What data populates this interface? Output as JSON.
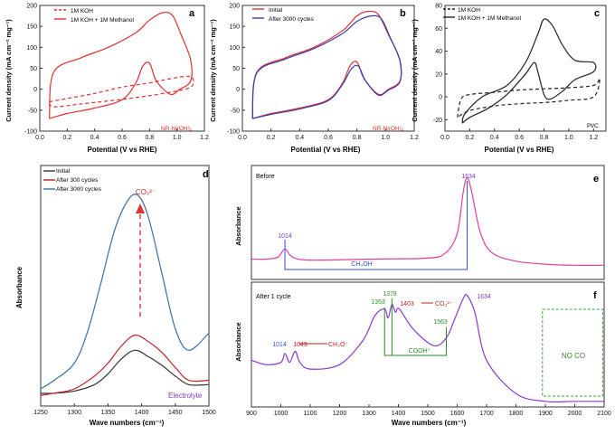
{
  "chart_data": [
    {
      "panel": "a",
      "type": "line",
      "xlabel": "Potential (V vs RHE)",
      "ylabel": "Current density (mA cm⁻² mg⁻¹)",
      "xlim": [
        0,
        1.2
      ],
      "ylim": [
        -100,
        200
      ],
      "xticks": [
        "0.0",
        "0.2",
        "0.4",
        "0.6",
        "0.8",
        "1.0",
        "1.2"
      ],
      "yticks": [
        "-100",
        "-50",
        "0",
        "50",
        "100",
        "150",
        "200"
      ],
      "legend": [
        "1M KOH",
        "1M KOH + 1M Methanol"
      ],
      "annotation": "NR-Ni(OH)₂",
      "series": [
        {
          "name": "1M KOH",
          "style": "dashed",
          "color": "#e03030",
          "x": [
            0.07,
            0.2,
            0.4,
            0.6,
            0.8,
            0.95,
            1.1,
            1.1,
            0.9,
            0.7,
            0.5,
            0.3,
            0.1,
            0.07
          ],
          "y": [
            -30,
            -22,
            -10,
            5,
            15,
            25,
            30,
            5,
            -10,
            -20,
            -28,
            -35,
            -42,
            -30
          ]
        },
        {
          "name": "1M KOH + 1M Methanol",
          "style": "solid",
          "color": "#e03030",
          "x": [
            0.07,
            0.1,
            0.3,
            0.5,
            0.7,
            0.8,
            0.9,
            0.97,
            1.03,
            1.1,
            1.1,
            1.02,
            0.95,
            0.85,
            0.8,
            0.75,
            0.7,
            0.6,
            0.4,
            0.2,
            0.07
          ],
          "y": [
            -70,
            40,
            75,
            100,
            135,
            165,
            183,
            175,
            130,
            70,
            20,
            0,
            -12,
            20,
            62,
            55,
            15,
            -25,
            -45,
            -58,
            -70
          ]
        }
      ]
    },
    {
      "panel": "b",
      "type": "line",
      "xlabel": "Potential (V vs RHE)",
      "ylabel": "Current density (mA cm⁻² mg⁻¹)",
      "xlim": [
        0,
        1.2
      ],
      "ylim": [
        -100,
        200
      ],
      "xticks": [
        "0.0",
        "0.2",
        "0.4",
        "0.6",
        "0.8",
        "1.0",
        "1.2"
      ],
      "yticks": [
        "-100",
        "-50",
        "0",
        "50",
        "100",
        "150",
        "200"
      ],
      "legend": [
        "Initial",
        "After 3000 cycles"
      ],
      "annotation": "NR-Ni(OH)₂",
      "series": [
        {
          "name": "Initial",
          "style": "solid",
          "color": "#e03030",
          "x": [
            0.07,
            0.1,
            0.3,
            0.5,
            0.7,
            0.8,
            0.88,
            0.95,
            1.02,
            1.1,
            1.1,
            1.02,
            0.95,
            0.85,
            0.8,
            0.75,
            0.7,
            0.6,
            0.4,
            0.2,
            0.07
          ],
          "y": [
            -70,
            40,
            75,
            100,
            140,
            175,
            186,
            178,
            130,
            70,
            20,
            0,
            -12,
            25,
            65,
            55,
            15,
            -25,
            -45,
            -58,
            -70
          ]
        },
        {
          "name": "After 3000 cycles",
          "style": "solid",
          "color": "#3a3ab0",
          "x": [
            0.07,
            0.1,
            0.3,
            0.5,
            0.7,
            0.8,
            0.9,
            0.97,
            1.03,
            1.1,
            1.1,
            1.02,
            0.95,
            0.86,
            0.81,
            0.76,
            0.7,
            0.6,
            0.4,
            0.2,
            0.07
          ],
          "y": [
            -70,
            38,
            72,
            97,
            133,
            162,
            175,
            168,
            125,
            68,
            18,
            -2,
            -14,
            20,
            55,
            48,
            12,
            -27,
            -47,
            -60,
            -70
          ]
        }
      ]
    },
    {
      "panel": "c",
      "type": "line",
      "xlabel": "Potential (V vs RHE)",
      "ylabel": "Current density (mA cm⁻² mg⁻¹)",
      "xlim": [
        0,
        1.3
      ],
      "ylim": [
        -30,
        80
      ],
      "xticks": [
        "0.0",
        "0.2",
        "0.4",
        "0.6",
        "0.8",
        "1.0",
        "1.2"
      ],
      "yticks": [
        "-20",
        "0",
        "20",
        "40",
        "60",
        "80"
      ],
      "legend": [
        "1M KOH",
        "1M KOH + 1M Methanol"
      ],
      "annotation": "Pt/C",
      "series": [
        {
          "name": "1M KOH",
          "style": "dashed",
          "color": "#222222",
          "x": [
            0.1,
            0.13,
            0.2,
            0.4,
            0.6,
            0.8,
            1.0,
            1.2,
            1.25,
            1.2,
            1.0,
            0.8,
            0.6,
            0.4,
            0.2,
            0.1
          ],
          "y": [
            -18,
            -2,
            2,
            4,
            6,
            7,
            8,
            10,
            16,
            0,
            -3,
            -5,
            -6,
            -8,
            -12,
            -18
          ]
        },
        {
          "name": "1M KOH + 1M Methanol",
          "style": "solid",
          "color": "#222222",
          "x": [
            0.14,
            0.16,
            0.3,
            0.5,
            0.65,
            0.75,
            0.8,
            0.87,
            0.95,
            1.05,
            1.2,
            1.2,
            1.05,
            0.95,
            0.85,
            0.8,
            0.75,
            0.72,
            0.65,
            0.5,
            0.35,
            0.2,
            0.14
          ],
          "y": [
            -23,
            -15,
            0,
            10,
            30,
            55,
            68,
            62,
            45,
            32,
            30,
            22,
            15,
            5,
            -2,
            2,
            22,
            30,
            20,
            2,
            -10,
            -18,
            -23
          ]
        }
      ]
    },
    {
      "panel": "d",
      "type": "line",
      "xlabel": "Wave numbers (cm⁻¹)",
      "ylabel": "Absorbance",
      "xlim": [
        1250,
        1500
      ],
      "xticks": [
        "1250",
        "1300",
        "1350",
        "1400",
        "1450",
        "1500"
      ],
      "legend": [
        "Initial",
        "After 300 cycles",
        "After 3000 cycles"
      ],
      "annotations": [
        "CO₃²⁻",
        "Electrolyte"
      ],
      "series": [
        {
          "name": "Initial",
          "color": "#333333",
          "x": [
            1250,
            1270,
            1300,
            1330,
            1350,
            1370,
            1390,
            1410,
            1430,
            1450,
            1470,
            1500
          ],
          "y": [
            0.06,
            0.06,
            0.07,
            0.1,
            0.15,
            0.22,
            0.26,
            0.23,
            0.19,
            0.14,
            0.1,
            0.1
          ]
        },
        {
          "name": "After 300 cycles",
          "color": "#c02020",
          "x": [
            1250,
            1270,
            1300,
            1330,
            1350,
            1370,
            1390,
            1410,
            1430,
            1450,
            1470,
            1500
          ],
          "y": [
            0.05,
            0.06,
            0.08,
            0.14,
            0.2,
            0.28,
            0.33,
            0.3,
            0.25,
            0.18,
            0.12,
            0.12
          ]
        },
        {
          "name": "After 3000 cycles",
          "color": "#3a6fa8",
          "x": [
            1250,
            1270,
            1300,
            1320,
            1340,
            1360,
            1380,
            1395,
            1410,
            1430,
            1450,
            1470,
            1500
          ],
          "y": [
            0.08,
            0.12,
            0.2,
            0.35,
            0.58,
            0.82,
            0.96,
            0.98,
            0.88,
            0.62,
            0.36,
            0.26,
            0.34
          ]
        }
      ]
    },
    {
      "panel": "e",
      "type": "line",
      "xlabel": "Wave numbers (cm⁻¹)",
      "ylabel": "Absorbance",
      "xlim": [
        900,
        2100
      ],
      "label": "Before",
      "annotations": [
        "1014",
        "1634",
        "CH₃OH"
      ],
      "series": [
        {
          "name": "Before",
          "color": "#e0409a",
          "x": [
            900,
            950,
            990,
            1014,
            1040,
            1100,
            1300,
            1500,
            1560,
            1600,
            1620,
            1634,
            1650,
            1680,
            1720,
            1800,
            1900,
            2000,
            2100
          ],
          "y": [
            0.2,
            0.2,
            0.22,
            0.3,
            0.22,
            0.19,
            0.2,
            0.21,
            0.26,
            0.45,
            0.85,
            1.0,
            0.85,
            0.45,
            0.26,
            0.18,
            0.15,
            0.14,
            0.14
          ]
        }
      ]
    },
    {
      "panel": "f",
      "type": "line",
      "xlabel": "Wave numbers (cm⁻¹)",
      "ylabel": "Absorbance",
      "xlim": [
        900,
        2100
      ],
      "xticks": [
        "900",
        "1000",
        "1100",
        "1200",
        "1300",
        "1400",
        "1500",
        "1600",
        "1700",
        "1800",
        "1900",
        "2000",
        "2100"
      ],
      "label": "After 1 cycle",
      "annotations": [
        "1014",
        "1049",
        "CH₃O⁻",
        "1353",
        "1378",
        "1403",
        "CO₃²⁻",
        "1563",
        "COOH⁺",
        "1634",
        "NO CO"
      ],
      "series": [
        {
          "name": "After 1 cycle",
          "color": "#8a3ad0",
          "x": [
            900,
            950,
            1000,
            1014,
            1030,
            1049,
            1065,
            1100,
            1200,
            1280,
            1320,
            1353,
            1365,
            1378,
            1390,
            1403,
            1450,
            1520,
            1563,
            1590,
            1620,
            1634,
            1660,
            1700,
            1800,
            1900,
            2000,
            2100
          ],
          "y": [
            0.42,
            0.38,
            0.4,
            0.48,
            0.4,
            0.5,
            0.4,
            0.34,
            0.38,
            0.6,
            0.82,
            0.88,
            0.8,
            0.92,
            0.85,
            0.88,
            0.7,
            0.55,
            0.62,
            0.78,
            0.97,
            1.0,
            0.85,
            0.42,
            0.12,
            0.05,
            0.05,
            0.05
          ]
        }
      ]
    }
  ],
  "panels": {
    "a": {
      "letter": "a",
      "legend1": "1M KOH",
      "legend2": "1M KOH + 1M Methanol",
      "tag": "NR-Ni(OH)₂"
    },
    "b": {
      "letter": "b",
      "legend1": "Initial",
      "legend2": "After 3000 cycles",
      "tag": "NR-Ni(OH)₂"
    },
    "c": {
      "letter": "c",
      "legend1": "1M KOH",
      "legend2": "1M KOH + 1M Methanol",
      "tag": "Pt/C"
    },
    "d": {
      "letter": "d",
      "legend1": "Initial",
      "legend2": "After 300 cycles",
      "legend3": "After 3000 cycles",
      "peak": "CO₃²⁻",
      "tag": "Electrolyte"
    },
    "e": {
      "letter": "e",
      "title": "Before",
      "p1014": "1014",
      "p1634": "1634",
      "bracket": "CH₃OH"
    },
    "f": {
      "letter": "f",
      "title": "After 1 cycle",
      "p1014": "1014",
      "p1049": "1049",
      "ch3o": "CH₃O⁻",
      "p1353": "1353",
      "p1378": "1378",
      "p1403": "1403",
      "co3": "CO₃²⁻",
      "p1563": "1563",
      "cooh": "COOH⁺",
      "p1634": "1634",
      "noco": "NO CO"
    }
  },
  "axes": {
    "potential": "Potential (V vs RHE)",
    "current": "Current density (mA cm⁻² mg⁻¹)",
    "wavenumber": "Wave numbers (cm⁻¹)",
    "absorbance": "Absorbance"
  }
}
